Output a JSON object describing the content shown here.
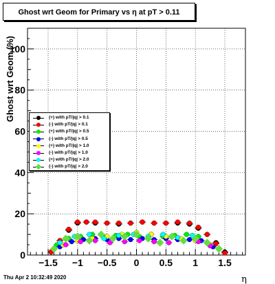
{
  "title": "Ghost wrt Geom for Primary vs    η at pT > 0.11",
  "timestamp": "Thu Apr  2 10:32:49 2020",
  "chart_data": {
    "type": "scatter",
    "xlabel": "η",
    "ylabel": "Ghost wrt Geom (%)",
    "xlim": [
      -1.85,
      1.85
    ],
    "ylim": [
      0,
      110
    ],
    "x_ticks": [
      -1.5,
      -1,
      -0.5,
      0,
      0.5,
      1,
      1.5
    ],
    "x_tick_labels": [
      "−1.5",
      "−1",
      "−0.5",
      "0",
      "0.5",
      "1",
      "1.5"
    ],
    "y_ticks": [
      0,
      20,
      40,
      60,
      80,
      100
    ],
    "y_tick_labels": [
      "0",
      "20",
      "40",
      "60",
      "80",
      "100"
    ],
    "grid": true,
    "legend_position": "left",
    "series": [
      {
        "name": "(+) with pT/|q| > 0.1",
        "color": "#000000",
        "marker": "circle",
        "x": [
          -1.45,
          -1.3,
          -1.15,
          -1.0,
          -0.85,
          -0.7,
          -0.5,
          -0.3,
          -0.1,
          0.1,
          0.3,
          0.5,
          0.7,
          0.9,
          1.05,
          1.2,
          1.35,
          1.5
        ],
        "y": [
          1.5,
          7,
          12,
          15.5,
          16,
          15.5,
          15.5,
          15,
          15.5,
          16,
          15.5,
          15.5,
          15.5,
          15,
          13,
          10,
          6,
          1.5
        ]
      },
      {
        "name": "(-) with pT/|q| > 0.1",
        "color": "#ff0000",
        "marker": "circle",
        "x": [
          -1.45,
          -1.3,
          -1.15,
          -1.0,
          -0.85,
          -0.7,
          -0.5,
          -0.3,
          -0.1,
          0.1,
          0.3,
          0.5,
          0.7,
          0.9,
          1.05,
          1.2,
          1.35,
          1.5
        ],
        "y": [
          1.5,
          7,
          12.5,
          16,
          16,
          16,
          15.5,
          15.5,
          15.5,
          16,
          15.5,
          15.5,
          16,
          15.5,
          13.5,
          10,
          5.5,
          1
        ]
      },
      {
        "name": "(+) with pT/|q| > 0.5",
        "color": "#00ee00",
        "marker": "circle",
        "x": [
          -1.35,
          -1.15,
          -0.95,
          -0.75,
          -0.55,
          -0.35,
          -0.15,
          0.05,
          0.25,
          0.45,
          0.65,
          0.85,
          1.05,
          1.25
        ],
        "y": [
          5,
          8,
          9,
          10,
          9,
          9.5,
          10,
          9,
          10,
          9,
          9.5,
          10,
          9,
          5
        ]
      },
      {
        "name": "(-) with pT/|q| > 0.5",
        "color": "#0000ff",
        "marker": "circle",
        "x": [
          -1.3,
          -1.1,
          -0.9,
          -0.7,
          -0.5,
          -0.3,
          -0.1,
          0.1,
          0.3,
          0.5,
          0.7,
          0.9,
          1.1,
          1.3
        ],
        "y": [
          4,
          6.5,
          7.5,
          8,
          7.5,
          8,
          7.5,
          8,
          7.5,
          8,
          7.5,
          7.5,
          7,
          4
        ]
      },
      {
        "name": "(+) with pT/|q| > 1.0",
        "color": "#ffff00",
        "marker": "circle",
        "x": [
          -1.25,
          -1.0,
          -0.75,
          -0.5,
          -0.25,
          0.0,
          0.25,
          0.5,
          0.75,
          1.0,
          1.25
        ],
        "y": [
          5,
          7,
          8,
          9,
          10,
          11,
          10,
          9,
          8,
          7,
          5
        ]
      },
      {
        "name": "(-) with pT/|q| > 1.0",
        "color": "#ff00ff",
        "marker": "circle",
        "x": [
          -1.2,
          -0.95,
          -0.7,
          -0.45,
          -0.2,
          0.05,
          0.3,
          0.55,
          0.8,
          1.05,
          1.25
        ],
        "y": [
          5,
          6.5,
          7,
          6,
          6.5,
          7,
          6.5,
          6,
          7,
          6.5,
          4.5
        ]
      },
      {
        "name": "(+) with pT/|q| > 2.0",
        "color": "#00ffff",
        "marker": "circle",
        "x": [
          -1.3,
          -1.05,
          -0.8,
          -0.55,
          -0.3,
          -0.05,
          0.2,
          0.45,
          0.7,
          0.95,
          1.2
        ],
        "y": [
          6,
          9,
          10,
          8,
          9.5,
          10,
          9,
          10,
          8.5,
          9.5,
          6
        ]
      },
      {
        "name": "(-) with pT/|q| > 2.0",
        "color": "#66dd44",
        "marker": "diamond",
        "x": [
          -1.4,
          -1.2,
          -1.0,
          -0.8,
          -0.6,
          -0.4,
          -0.2,
          0.0,
          0.2,
          0.4,
          0.6,
          0.8,
          1.0,
          1.2,
          1.4
        ],
        "y": [
          3,
          8,
          9,
          7,
          10,
          8,
          9,
          10,
          8,
          6,
          9,
          7,
          8,
          6,
          3
        ]
      }
    ]
  }
}
